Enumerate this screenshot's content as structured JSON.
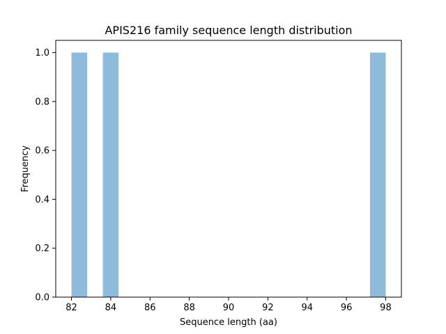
{
  "chart_data": {
    "type": "bar",
    "title": "APIS216 family sequence length distribution",
    "xlabel": "Sequence length (aa)",
    "ylabel": "Frequency",
    "xlim": [
      81.2,
      98.8
    ],
    "ylim": [
      0.0,
      1.05
    ],
    "xticks": [
      82,
      84,
      86,
      88,
      90,
      92,
      94,
      96,
      98
    ],
    "xtick_labels": [
      "82",
      "84",
      "86",
      "88",
      "90",
      "92",
      "94",
      "96",
      "98"
    ],
    "yticks": [
      0.0,
      0.2,
      0.4,
      0.6,
      0.8,
      1.0
    ],
    "ytick_labels": [
      "0.0",
      "0.2",
      "0.4",
      "0.6",
      "0.8",
      "1.0"
    ],
    "bins": [
      {
        "start": 82.0,
        "end": 82.8,
        "value": 1
      },
      {
        "start": 83.6,
        "end": 84.4,
        "value": 1
      },
      {
        "start": 97.2,
        "end": 98.0,
        "value": 1
      }
    ],
    "bar_color": "#8fbbda",
    "grid": false,
    "legend": "none"
  }
}
